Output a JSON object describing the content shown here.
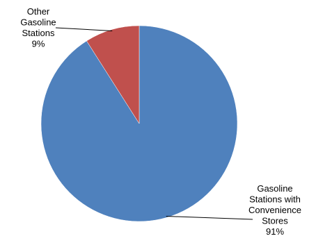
{
  "chart_data": {
    "type": "pie",
    "slices": [
      {
        "label_lines": [
          "Gasoline",
          "Stations with",
          "Convenience",
          "Stores"
        ],
        "percent_label": "91%",
        "value": 91,
        "color": "#4F81BD"
      },
      {
        "label_lines": [
          "Other",
          "Gasoline",
          "Stations"
        ],
        "percent_label": "9%",
        "value": 9,
        "color": "#C0504D"
      }
    ],
    "start_angle_deg": 0,
    "direction": "clockwise"
  }
}
